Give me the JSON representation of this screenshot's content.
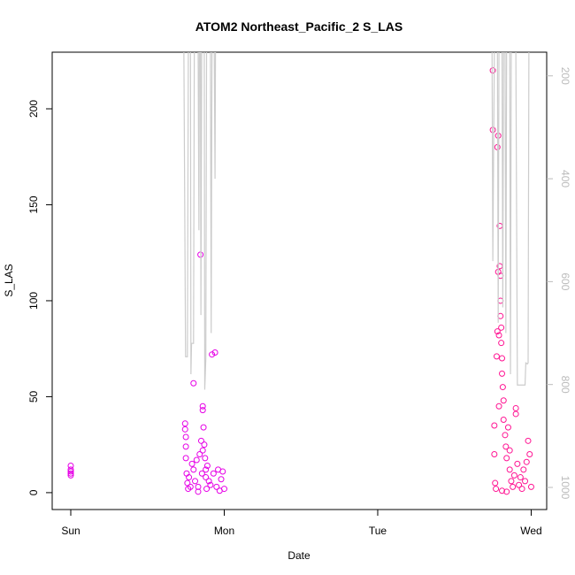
{
  "chart_data": {
    "type": "scatter",
    "title": "ATOM2 Northeast_Pacific_2 S_LAS",
    "x_label": "Date",
    "y_label": "S_LAS",
    "xlim": [
      -0.121,
      3.101
    ],
    "xticks": [
      {
        "value": 0,
        "label": "Sun"
      },
      {
        "value": 1,
        "label": "Mon"
      },
      {
        "value": 2,
        "label": "Tue"
      },
      {
        "value": 3,
        "label": "Wed"
      }
    ],
    "ylim": [
      -8.8,
      229.5
    ],
    "yticks": [
      0,
      50,
      100,
      150,
      200
    ],
    "y2lim": [
      1043,
      154
    ],
    "y2ticks": [
      200,
      400,
      600,
      800,
      1000
    ],
    "y2_color": "#bbbbbb",
    "series": [
      {
        "color": "#e600e6",
        "x": [
          0,
          0,
          0,
          0,
          0,
          0.745,
          0.745,
          0.75,
          0.75,
          0.75,
          0.755,
          0.76,
          0.765,
          0.77,
          0.78,
          0.79,
          0.8,
          0.8,
          0.81,
          0.82,
          0.83,
          0.84,
          0.845,
          0.85,
          0.855,
          0.86,
          0.86,
          0.865,
          0.87,
          0.875,
          0.88,
          0.885,
          0.89,
          0.9,
          0.91,
          0.92,
          0.93,
          0.94,
          0.95,
          0.96,
          0.97,
          0.98,
          0.99,
          1.0,
          0.83,
          0.86,
          0.88
        ],
        "values": [
          9,
          10,
          12,
          14,
          11,
          36,
          33,
          29,
          24,
          18,
          10,
          5,
          2,
          8,
          3,
          15,
          57,
          12,
          6,
          17,
          3,
          20,
          124,
          27,
          10,
          45,
          43,
          34,
          25,
          18,
          8,
          2,
          14,
          6,
          4,
          72,
          10,
          73,
          3,
          12,
          1,
          7,
          11,
          2,
          0.5,
          22,
          12
        ]
      },
      {
        "color": "#ff1493",
        "x": [
          2.75,
          2.75,
          2.76,
          2.76,
          2.765,
          2.77,
          2.775,
          2.78,
          2.78,
          2.785,
          2.785,
          2.79,
          2.79,
          2.795,
          2.795,
          2.8,
          2.8,
          2.805,
          2.805,
          2.81,
          2.81,
          2.815,
          2.82,
          2.82,
          2.83,
          2.835,
          2.84,
          2.85,
          2.86,
          2.87,
          2.88,
          2.89,
          2.9,
          2.9,
          2.91,
          2.92,
          2.93,
          2.94,
          2.95,
          2.96,
          2.97,
          2.98,
          2.99,
          3.0,
          2.8,
          2.81,
          2.84,
          2.86
        ],
        "values": [
          220,
          189,
          35,
          20,
          5,
          2,
          71,
          84,
          180,
          186,
          115,
          82,
          45,
          139,
          118,
          113,
          100,
          86,
          78,
          70,
          62,
          55,
          48,
          38,
          30,
          24,
          18,
          34,
          12,
          6,
          3,
          9,
          44,
          41,
          15,
          4,
          8,
          2,
          12,
          6,
          16,
          27,
          20,
          3,
          92,
          1,
          0.5,
          22
        ]
      },
      {
        "color": "#cccccc",
        "axis": "y2",
        "x": [
          0.737,
          0.748,
          0.76,
          0.766,
          0.78,
          0.783,
          0.787,
          0.8,
          0.805,
          0.83,
          0.835,
          0.838,
          0.845,
          0.848,
          0.853,
          0.87,
          0.873,
          0.88,
          0.885,
          0.91,
          0.915,
          0.92,
          0.935,
          0.94,
          0.943,
          1.5,
          2.745,
          2.75,
          2.76,
          2.78,
          2.785,
          2.79,
          2.81,
          2.815,
          2.82,
          2.83,
          2.835,
          2.84,
          2.86,
          2.865,
          2.87,
          2.9,
          2.91,
          2.96,
          2.965,
          2.975,
          2.98,
          2.985
        ],
        "values": [
          150,
          746,
          746,
          150,
          150,
          780,
          720,
          720,
          150,
          150,
          500,
          150,
          150,
          665,
          150,
          150,
          810,
          750,
          150,
          150,
          700,
          150,
          150,
          400,
          150,
          null,
          150,
          560,
          150,
          150,
          680,
          150,
          150,
          650,
          150,
          150,
          700,
          150,
          150,
          780,
          150,
          150,
          801,
          801,
          758,
          760,
          758,
          150
        ]
      }
    ]
  }
}
